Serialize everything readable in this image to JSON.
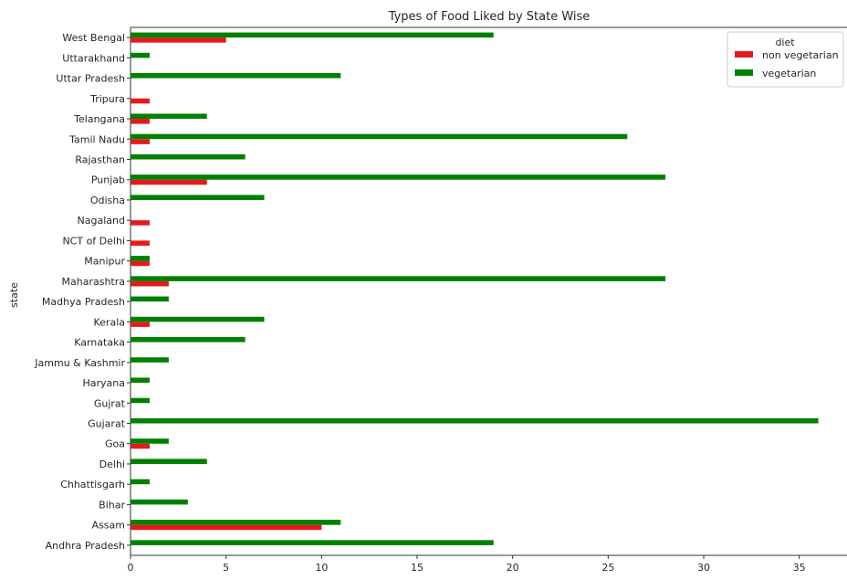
{
  "chart_data": {
    "type": "bar",
    "orientation": "horizontal",
    "title": "Types of Food Liked by State Wise",
    "xlabel": "",
    "ylabel": "state",
    "xlim": [
      0,
      37.5
    ],
    "xticks": [
      0,
      5,
      10,
      15,
      20,
      25,
      30,
      35
    ],
    "grid": false,
    "legend": {
      "title": "diet",
      "placement": "top-right"
    },
    "categories": [
      "Andhra Pradesh",
      "Assam",
      "Bihar",
      "Chhattisgarh",
      "Delhi",
      "Goa",
      "Gujarat",
      "Gujrat",
      "Haryana",
      "Jammu & Kashmir",
      "Karnataka",
      "Kerala",
      "Madhya Pradesh",
      "Maharashtra",
      "Manipur",
      "NCT of Delhi",
      "Nagaland",
      "Odisha",
      "Punjab",
      "Rajasthan",
      "Tamil Nadu",
      "Telangana",
      "Tripura",
      "Uttar Pradesh",
      "Uttarakhand",
      "West Bengal"
    ],
    "series": [
      {
        "name": "non vegetarian",
        "color": "#e31a1c",
        "values": [
          0,
          10,
          0,
          0,
          0,
          1,
          0,
          0,
          0,
          0,
          0,
          1,
          0,
          2,
          1,
          1,
          1,
          0,
          4,
          0,
          1,
          1,
          1,
          0,
          0,
          5
        ]
      },
      {
        "name": "vegetarian",
        "color": "#008000",
        "values": [
          19,
          11,
          3,
          1,
          4,
          2,
          36,
          1,
          1,
          2,
          6,
          7,
          2,
          28,
          1,
          0,
          0,
          7,
          28,
          6,
          26,
          4,
          0,
          11,
          1,
          19
        ]
      }
    ]
  }
}
